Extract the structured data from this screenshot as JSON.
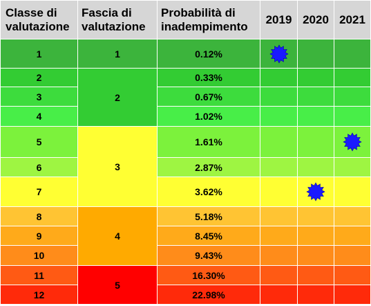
{
  "headers": {
    "classe": "Classe di valutazione",
    "fascia": "Fascia di valutazione",
    "probabilita": "Probabilità di inadempimento",
    "y2019": "2019",
    "y2020": "2020",
    "y2021": "2021"
  },
  "rows": [
    {
      "classe": "1",
      "pd": "0.12%",
      "color": "#3cb43c"
    },
    {
      "classe": "2",
      "pd": "0.33%",
      "color": "#33cc33"
    },
    {
      "classe": "3",
      "pd": "0.67%",
      "color": "#3ddc3d"
    },
    {
      "classe": "4",
      "pd": "1.02%",
      "color": "#48ee48"
    },
    {
      "classe": "5",
      "pd": "1.61%",
      "color": "#7cf23c"
    },
    {
      "classe": "6",
      "pd": "2.87%",
      "color": "#9ef542"
    },
    {
      "classe": "7",
      "pd": "3.62%",
      "color": "#ffff33"
    },
    {
      "classe": "8",
      "pd": "5.18%",
      "color": "#ffc433"
    },
    {
      "classe": "9",
      "pd": "8.45%",
      "color": "#ffaa1a"
    },
    {
      "classe": "10",
      "pd": "9.43%",
      "color": "#ff8c1a"
    },
    {
      "classe": "11",
      "pd": "16.30%",
      "color": "#ff5a14"
    },
    {
      "classe": "12",
      "pd": "22.98%",
      "color": "#ff2a0a"
    }
  ],
  "fasce": [
    {
      "label": "1",
      "first": 0,
      "last": 0,
      "color": "#3cb43c"
    },
    {
      "label": "2",
      "first": 1,
      "last": 3,
      "color": "#33cc33"
    },
    {
      "label": "3",
      "first": 4,
      "last": 6,
      "color": "#ffff33"
    },
    {
      "label": "4",
      "first": 7,
      "last": 9,
      "color": "#ffaa00"
    },
    {
      "label": "5",
      "first": 10,
      "last": 11,
      "color": "#ff0000"
    }
  ],
  "markers": [
    {
      "year": "2019",
      "classe": "1",
      "icon": "blue-star-icon",
      "color": "#1a1aff"
    },
    {
      "year": "2020",
      "classe": "7",
      "icon": "blue-star-icon",
      "color": "#1a1aff"
    },
    {
      "year": "2021",
      "classe": "5",
      "icon": "blue-star-icon",
      "color": "#1a1aff"
    }
  ]
}
